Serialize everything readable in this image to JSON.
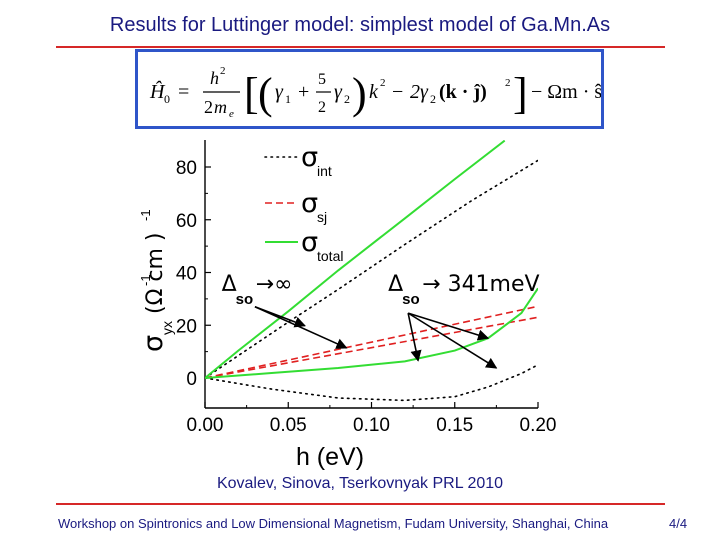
{
  "slide": {
    "title": "Results for Luttinger model: simplest model of Ga.Mn.As",
    "citation": "Kovalev, Sinova, Tserkovnyak PRL 2010",
    "footer": "Workshop on Spintronics and Low Dimensional Magnetism, Fudam University, Shanghai, China",
    "page_number": "4/4"
  },
  "formula": {
    "H": "Ĥ",
    "H_sub": "0",
    "eq": "=",
    "h": "h",
    "sq": "2",
    "two": "2",
    "m": "m",
    "m_sub": "e",
    "gamma1": "γ",
    "g1_sub": "1",
    "plus": "+",
    "five": "5",
    "gamma2": "γ",
    "g2_sub": "2",
    "k": "k",
    "minus": "−",
    "two_gamma": "2γ",
    "g2b_sub": "2",
    "kj": "(k · ĵ)",
    "omega_m_s": "− Ωm · ŝ"
  },
  "chart_data": {
    "type": "line",
    "xlabel": "h (eV)",
    "ylabel": "σ",
    "ylabel_sub": "yx",
    "ylabel_units": "(Ω  cm )",
    "ylabel_exp": "-1",
    "xlim": [
      0.0,
      0.2
    ],
    "ylim": [
      -10,
      88
    ],
    "xticks": [
      "0.00",
      "0.05",
      "0.10",
      "0.15",
      "0.20"
    ],
    "yticks": [
      "0",
      "20",
      "40",
      "60",
      "80"
    ],
    "legend_position": "top-left",
    "legend": [
      {
        "name": "σ",
        "sub": "int",
        "style": "dotted",
        "color": "#000000"
      },
      {
        "name": "σ",
        "sub": "sj",
        "style": "dashed",
        "color": "#e02020"
      },
      {
        "name": "σ",
        "sub": "total",
        "style": "solid",
        "color": "#33dd33"
      }
    ],
    "series": [
      {
        "key": "int_inf",
        "style": "dotted",
        "color": "#000000",
        "points": [
          [
            0,
            0
          ],
          [
            0.02,
            8.5
          ],
          [
            0.05,
            21.2
          ],
          [
            0.08,
            33.6
          ],
          [
            0.12,
            50.6
          ],
          [
            0.16,
            67.2
          ],
          [
            0.2,
            82.5
          ]
        ]
      },
      {
        "key": "int_341",
        "style": "dotted",
        "color": "#000000",
        "points": [
          [
            0,
            0
          ],
          [
            0.04,
            -4.2
          ],
          [
            0.08,
            -7.6
          ],
          [
            0.12,
            -8.5
          ],
          [
            0.15,
            -7.1
          ],
          [
            0.17,
            -3.4
          ],
          [
            0.19,
            1.7
          ],
          [
            0.2,
            5
          ]
        ]
      },
      {
        "key": "sj_a",
        "style": "dashed",
        "color": "#e02020",
        "points": [
          [
            0,
            0
          ],
          [
            0.2,
            27.2
          ]
        ]
      },
      {
        "key": "sj_b",
        "style": "dashed",
        "color": "#e02020",
        "points": [
          [
            0,
            0
          ],
          [
            0.2,
            23
          ]
        ]
      },
      {
        "key": "total_inf",
        "style": "solid",
        "color": "#33dd33",
        "points": [
          [
            0,
            0
          ],
          [
            0.02,
            10.4
          ],
          [
            0.05,
            25.3
          ],
          [
            0.08,
            40.8
          ],
          [
            0.12,
            60.5
          ],
          [
            0.15,
            75.4
          ],
          [
            0.18,
            90
          ]
        ]
      },
      {
        "key": "total_341",
        "style": "solid",
        "color": "#33dd33",
        "points": [
          [
            0,
            0
          ],
          [
            0.04,
            1.9
          ],
          [
            0.08,
            3.8
          ],
          [
            0.12,
            6.3
          ],
          [
            0.15,
            10.4
          ],
          [
            0.17,
            15.1
          ],
          [
            0.19,
            24.6
          ],
          [
            0.2,
            34
          ]
        ]
      }
    ],
    "annotations": [
      {
        "label": "Δ",
        "sub": "so",
        "suffix": "→∞",
        "anchor": [
          0.01,
          33
        ],
        "arrows": [
          {
            "from": [
              0.03,
              27
            ],
            "to": [
              0.06,
              19.8
            ]
          },
          {
            "from": [
              0.03,
              27
            ],
            "to": [
              0.085,
              11.4
            ]
          }
        ]
      },
      {
        "label": "Δ",
        "sub": "so",
        "suffix": "→ 341meV",
        "anchor": [
          0.11,
          33
        ],
        "arrows": [
          {
            "from": [
              0.122,
              24.6
            ],
            "to": [
              0.128,
              6.6
            ]
          },
          {
            "from": [
              0.122,
              24.6
            ],
            "to": [
              0.17,
              15.1
            ]
          },
          {
            "from": [
              0.122,
              24.6
            ],
            "to": [
              0.175,
              3.8
            ]
          }
        ]
      }
    ]
  }
}
